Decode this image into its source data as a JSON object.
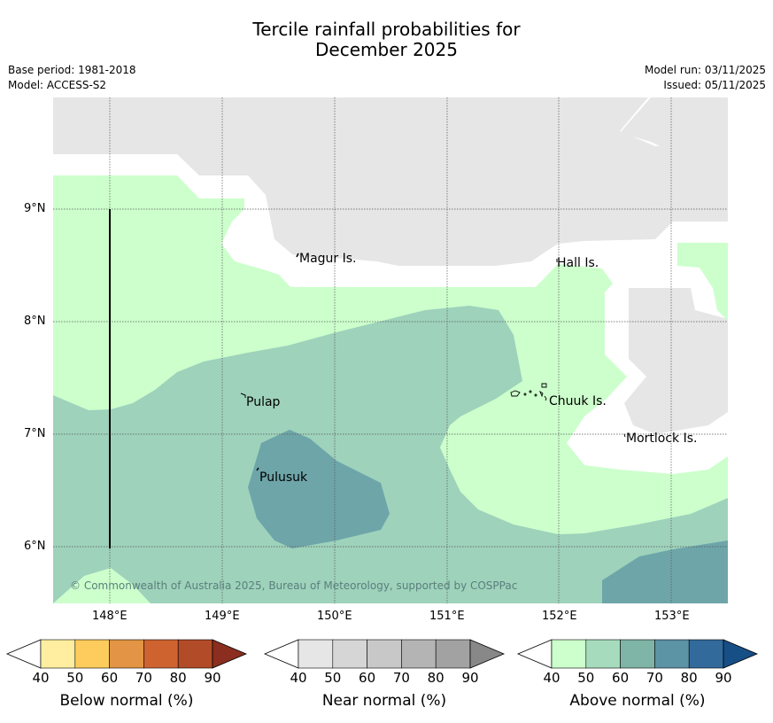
{
  "title": {
    "line1": "Tercile rainfall probabilities for",
    "line2": "December 2025"
  },
  "meta": {
    "base_period": "Base period: 1981-2018",
    "model": "Model: ACCESS-S2",
    "model_run": "Model run: 03/11/2025",
    "issued": "Issued: 05/11/2025"
  },
  "map": {
    "lat_ticks": [
      "9°N",
      "8°N",
      "7°N",
      "6°N"
    ],
    "lon_ticks": [
      "148°E",
      "149°E",
      "150°E",
      "151°E",
      "152°E",
      "153°E"
    ],
    "islands": [
      "Magur Is.",
      "Hall Is.",
      "Pulap",
      "Chuuk Is.",
      "Mortlock Is.",
      "Pulusuk"
    ],
    "copyright": "© Commonwealth of Australia 2025, Bureau of Meteorology, supported by COSPPac",
    "colors": {
      "land_mask": "#e6e6e6",
      "above_40_50": "#ccffcc",
      "above_50_60": "#9ed2bb",
      "above_60_70": "#6ea5a9",
      "above_70_80": "#5c93a5"
    }
  },
  "legends": [
    {
      "title": "Below normal (%)",
      "ticks": [
        "40",
        "50",
        "60",
        "70",
        "80",
        "90"
      ],
      "colors": [
        "#ffeda0",
        "#fecc5c",
        "#e39545",
        "#cf6330",
        "#b24b27",
        "#8b2e1f"
      ]
    },
    {
      "title": "Near normal (%)",
      "ticks": [
        "40",
        "50",
        "60",
        "70",
        "80",
        "90"
      ],
      "colors": [
        "#e6e6e6",
        "#d6d6d6",
        "#c8c8c8",
        "#b4b4b4",
        "#a2a2a2",
        "#888888"
      ]
    },
    {
      "title": "Above normal (%)",
      "ticks": [
        "40",
        "50",
        "60",
        "70",
        "80",
        "90"
      ],
      "colors": [
        "#ccffcc",
        "#a6dcbd",
        "#7fb5a6",
        "#5c93a5",
        "#326a9c",
        "#164f86"
      ]
    }
  ]
}
